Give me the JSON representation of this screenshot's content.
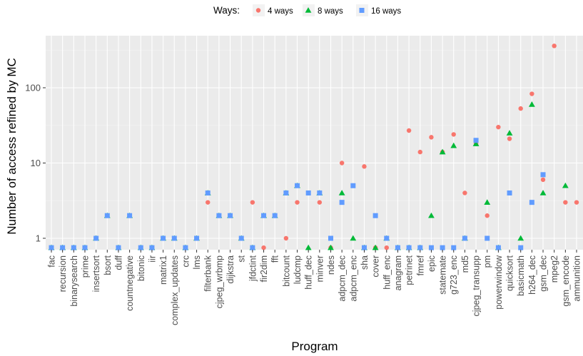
{
  "chart_data": {
    "type": "scatter",
    "xlabel": "Program",
    "ylabel": "Number of access refined by MC",
    "y_scale": "log10",
    "y_ticks": [
      1,
      10,
      100
    ],
    "y_tick_labels": [
      "1",
      "10",
      "100"
    ],
    "ylim": [
      0.72,
      520
    ],
    "grid": true,
    "legend": {
      "title": "Ways:",
      "position": "top",
      "entries": [
        {
          "name": "4 ways",
          "shape": "circle",
          "color": "#F8766D"
        },
        {
          "name": "8 ways",
          "shape": "triangle",
          "color": "#00BA38"
        },
        {
          "name": "16 ways",
          "shape": "square",
          "color": "#619CFF"
        }
      ]
    },
    "categories": [
      "fac",
      "recursion",
      "binarysearch",
      "prime",
      "insertsort",
      "bsort",
      "duff",
      "countnegative",
      "bitonic",
      "iir",
      "matrix1",
      "complex_updates",
      "crc",
      "lms",
      "filterbank",
      "cjpeg_wrbmp",
      "dijkstra",
      "st",
      "jfdctint",
      "fir2dim",
      "fft",
      "bitcount",
      "ludcmp",
      "huff_dec",
      "minver",
      "ndes",
      "adpcm_dec",
      "adpcm_enc",
      "sha",
      "cover",
      "huff_enc",
      "anagram",
      "petrinet",
      "fmref",
      "epic",
      "statemate",
      "g723_enc",
      "md5",
      "cjpeg_transupp",
      "pm",
      "powerwindow",
      "quicksort",
      "basicmath",
      "h264_dec",
      "gsm_dec",
      "mpeg2",
      "gsm_encode",
      "ammunition"
    ],
    "series": [
      {
        "name": "4 ways",
        "color": "#F8766D",
        "values": [
          0.75,
          0.75,
          0.75,
          0.75,
          1,
          2,
          0.75,
          2,
          0.75,
          0.75,
          1,
          1,
          0.75,
          1,
          3,
          2,
          2,
          1,
          3,
          0.75,
          2,
          1,
          3,
          4,
          3,
          0.75,
          10,
          5,
          9,
          0.75,
          0.75,
          0.75,
          27,
          14,
          22,
          14,
          24,
          4,
          18,
          2,
          30,
          21,
          53,
          83,
          6,
          360,
          3,
          3
        ]
      },
      {
        "name": "8 ways",
        "color": "#00BA38",
        "values": [
          0.75,
          0.75,
          0.75,
          0.75,
          1,
          2,
          0.75,
          2,
          0.75,
          0.75,
          1,
          1,
          0.75,
          1,
          4,
          2,
          2,
          1,
          0.75,
          2,
          2,
          4,
          5,
          0.75,
          4,
          0.75,
          4,
          1,
          0.75,
          0.75,
          1,
          0.75,
          0.75,
          0.75,
          2,
          14,
          17,
          1,
          18,
          3,
          0.75,
          25,
          1,
          60,
          4,
          null,
          5,
          null
        ]
      },
      {
        "name": "16 ways",
        "color": "#619CFF",
        "values": [
          0.75,
          0.75,
          0.75,
          0.75,
          1,
          2,
          0.75,
          2,
          0.75,
          0.75,
          1,
          1,
          0.75,
          1,
          4,
          2,
          2,
          1,
          0.75,
          2,
          2,
          4,
          5,
          4,
          4,
          1,
          3,
          5,
          0.75,
          2,
          1,
          0.75,
          0.75,
          0.75,
          0.75,
          0.75,
          0.75,
          1,
          20,
          1,
          0.75,
          4,
          0.75,
          3,
          7,
          null,
          null,
          null
        ]
      }
    ]
  }
}
